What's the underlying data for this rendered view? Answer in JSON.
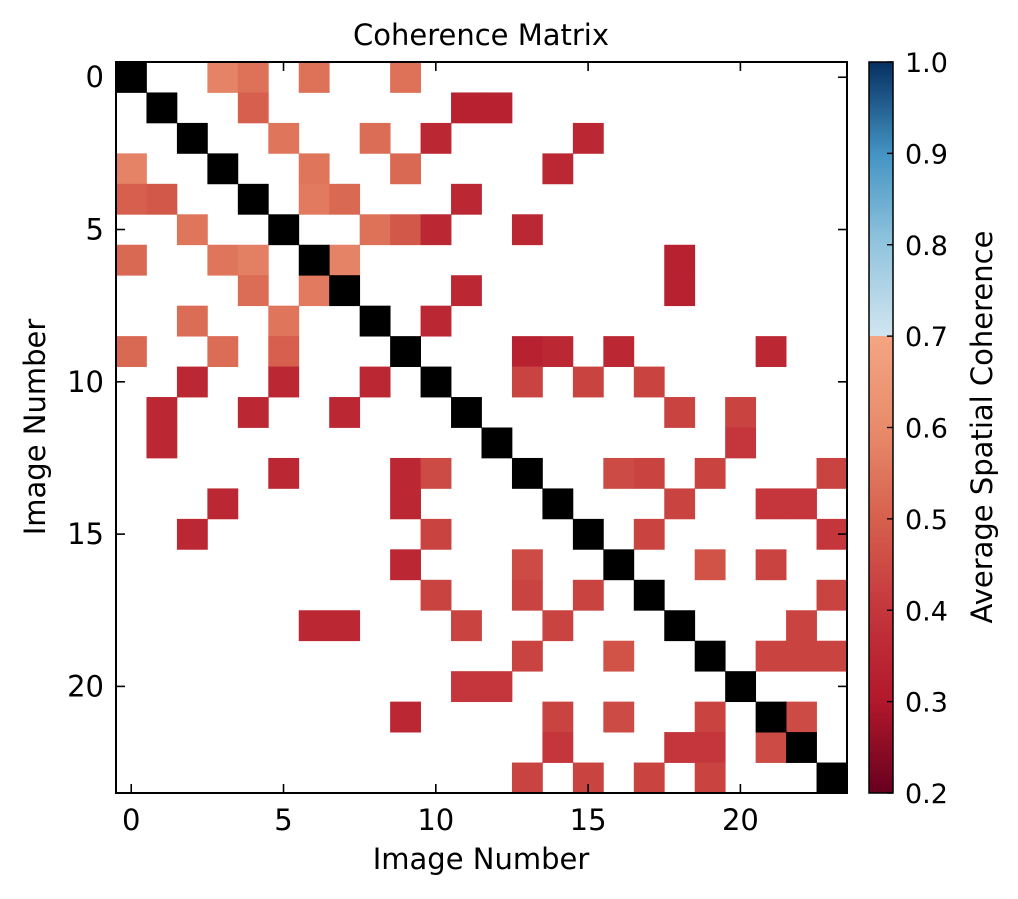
{
  "chart_data": {
    "type": "heatmap",
    "title": "Coherence Matrix",
    "xlabel": "Image Number",
    "ylabel": "Image Number",
    "xticks": [
      "0",
      "5",
      "10",
      "15",
      "20"
    ],
    "yticks": [
      "0",
      "5",
      "10",
      "15",
      "20"
    ],
    "xlim": [
      -0.5,
      23.5
    ],
    "ylim": [
      23.5,
      -0.5
    ],
    "size": 24,
    "colorbar": {
      "label": "Average Spatial Coherence",
      "ticks": [
        "0.2",
        "0.3",
        "0.4",
        "0.5",
        "0.6",
        "0.7",
        "0.8",
        "0.9",
        "1.0"
      ],
      "range": [
        0.2,
        1.0
      ],
      "colormap": "RdBu",
      "masked_below": 0.7
    },
    "diagonal_value": 1.0,
    "cells": [
      [
        0,
        3,
        0.58
      ],
      [
        0,
        4,
        0.54
      ],
      [
        0,
        6,
        0.54
      ],
      [
        0,
        9,
        0.54
      ],
      [
        1,
        4,
        0.5
      ],
      [
        1,
        11,
        0.33
      ],
      [
        1,
        12,
        0.33
      ],
      [
        2,
        5,
        0.55
      ],
      [
        2,
        8,
        0.53
      ],
      [
        2,
        10,
        0.35
      ],
      [
        2,
        15,
        0.35
      ],
      [
        3,
        0,
        0.58
      ],
      [
        3,
        6,
        0.55
      ],
      [
        3,
        9,
        0.52
      ],
      [
        3,
        14,
        0.35
      ],
      [
        4,
        0,
        0.5
      ],
      [
        4,
        1,
        0.48
      ],
      [
        4,
        6,
        0.56
      ],
      [
        4,
        7,
        0.52
      ],
      [
        4,
        11,
        0.35
      ],
      [
        5,
        2,
        0.55
      ],
      [
        5,
        8,
        0.54
      ],
      [
        5,
        9,
        0.48
      ],
      [
        5,
        10,
        0.35
      ],
      [
        5,
        13,
        0.35
      ],
      [
        6,
        0,
        0.52
      ],
      [
        6,
        3,
        0.55
      ],
      [
        6,
        4,
        0.57
      ],
      [
        6,
        7,
        0.58
      ],
      [
        6,
        18,
        0.33
      ],
      [
        7,
        4,
        0.53
      ],
      [
        7,
        6,
        0.56
      ],
      [
        7,
        11,
        0.35
      ],
      [
        7,
        18,
        0.33
      ],
      [
        8,
        2,
        0.53
      ],
      [
        8,
        5,
        0.55
      ],
      [
        8,
        10,
        0.35
      ],
      [
        9,
        0,
        0.52
      ],
      [
        9,
        3,
        0.53
      ],
      [
        9,
        5,
        0.5
      ],
      [
        9,
        13,
        0.33
      ],
      [
        9,
        14,
        0.35
      ],
      [
        9,
        16,
        0.35
      ],
      [
        9,
        21,
        0.35
      ],
      [
        10,
        2,
        0.35
      ],
      [
        10,
        5,
        0.35
      ],
      [
        10,
        8,
        0.35
      ],
      [
        10,
        13,
        0.43
      ],
      [
        10,
        15,
        0.43
      ],
      [
        10,
        17,
        0.43
      ],
      [
        11,
        1,
        0.35
      ],
      [
        11,
        4,
        0.35
      ],
      [
        11,
        7,
        0.35
      ],
      [
        11,
        18,
        0.43
      ],
      [
        11,
        20,
        0.43
      ],
      [
        12,
        1,
        0.35
      ],
      [
        12,
        20,
        0.4
      ],
      [
        13,
        5,
        0.35
      ],
      [
        13,
        9,
        0.35
      ],
      [
        13,
        10,
        0.45
      ],
      [
        13,
        16,
        0.45
      ],
      [
        13,
        17,
        0.43
      ],
      [
        13,
        19,
        0.43
      ],
      [
        13,
        23,
        0.43
      ],
      [
        14,
        3,
        0.35
      ],
      [
        14,
        9,
        0.35
      ],
      [
        14,
        18,
        0.43
      ],
      [
        14,
        21,
        0.4
      ],
      [
        14,
        22,
        0.4
      ],
      [
        15,
        2,
        0.35
      ],
      [
        15,
        10,
        0.43
      ],
      [
        15,
        17,
        0.43
      ],
      [
        15,
        23,
        0.4
      ],
      [
        16,
        9,
        0.35
      ],
      [
        16,
        13,
        0.45
      ],
      [
        16,
        19,
        0.47
      ],
      [
        16,
        21,
        0.43
      ],
      [
        17,
        10,
        0.43
      ],
      [
        17,
        13,
        0.43
      ],
      [
        17,
        15,
        0.43
      ],
      [
        17,
        23,
        0.43
      ],
      [
        18,
        6,
        0.35
      ],
      [
        18,
        7,
        0.35
      ],
      [
        18,
        11,
        0.43
      ],
      [
        18,
        14,
        0.43
      ],
      [
        18,
        22,
        0.43
      ],
      [
        19,
        13,
        0.43
      ],
      [
        19,
        16,
        0.47
      ],
      [
        19,
        21,
        0.43
      ],
      [
        19,
        22,
        0.43
      ],
      [
        19,
        23,
        0.43
      ],
      [
        20,
        11,
        0.4
      ],
      [
        20,
        12,
        0.4
      ],
      [
        21,
        9,
        0.35
      ],
      [
        21,
        14,
        0.43
      ],
      [
        21,
        16,
        0.45
      ],
      [
        21,
        19,
        0.43
      ],
      [
        21,
        22,
        0.45
      ],
      [
        22,
        14,
        0.4
      ],
      [
        22,
        18,
        0.4
      ],
      [
        22,
        19,
        0.4
      ],
      [
        22,
        21,
        0.45
      ],
      [
        23,
        13,
        0.43
      ],
      [
        23,
        15,
        0.43
      ],
      [
        23,
        17,
        0.43
      ],
      [
        23,
        19,
        0.43
      ]
    ]
  }
}
